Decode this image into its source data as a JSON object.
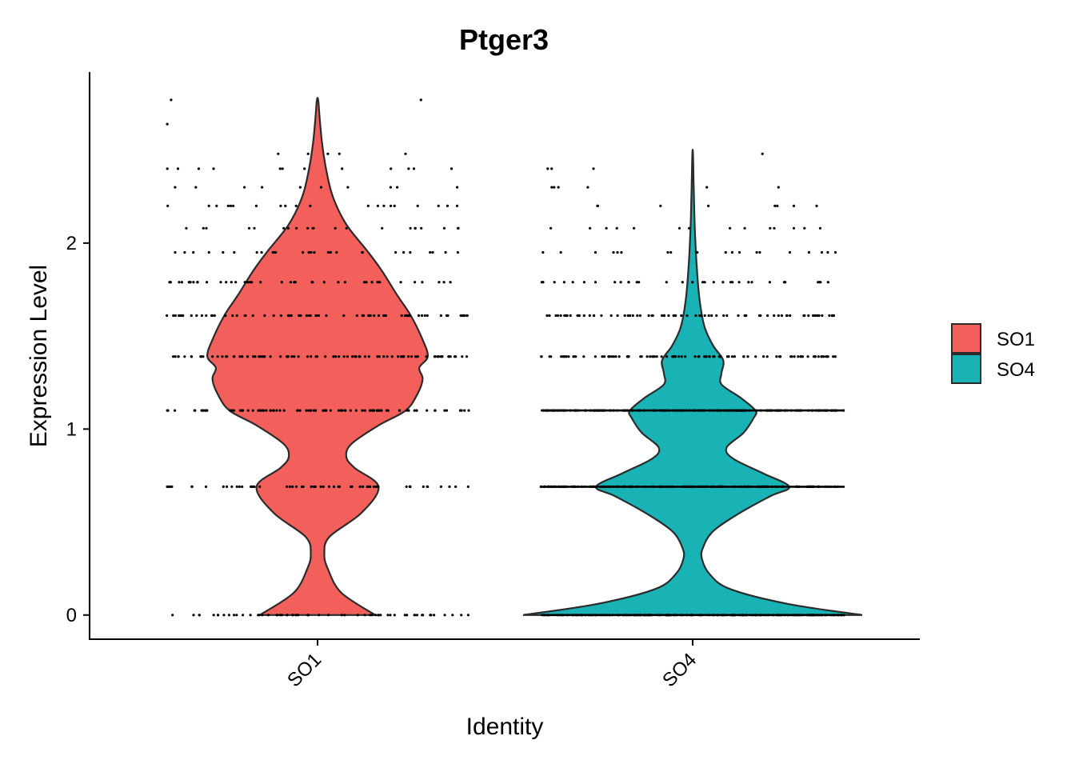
{
  "chart_data": {
    "type": "violin",
    "title": "Ptger3",
    "xlabel": "Identity",
    "ylabel": "Expression Level",
    "ylim": [
      -0.13,
      2.92
    ],
    "yticks": [
      0,
      1,
      2
    ],
    "categories": [
      "SO1",
      "SO4"
    ],
    "colors": {
      "SO1": "#F3605C",
      "SO4": "#19B2B5"
    },
    "legend": {
      "position": "right",
      "entries": [
        "SO1",
        "SO4"
      ]
    },
    "grid": false,
    "expression_levels": [
      0,
      0.69,
      1.1,
      1.39,
      1.61,
      1.79,
      1.95,
      2.08,
      2.2,
      2.3,
      2.4,
      2.48,
      2.64,
      2.77
    ],
    "series": [
      {
        "name": "SO1",
        "max": 2.77,
        "point_counts": [
          60,
          55,
          90,
          85,
          70,
          40,
          28,
          22,
          20,
          10,
          12,
          5,
          1,
          2
        ],
        "density_profile": [
          [
            0.0,
            0.34
          ],
          [
            0.12,
            0.14
          ],
          [
            0.25,
            0.06
          ],
          [
            0.33,
            0.04
          ],
          [
            0.42,
            0.07
          ],
          [
            0.55,
            0.26
          ],
          [
            0.69,
            0.36
          ],
          [
            0.79,
            0.22
          ],
          [
            0.85,
            0.17
          ],
          [
            0.92,
            0.2
          ],
          [
            1.02,
            0.36
          ],
          [
            1.1,
            0.52
          ],
          [
            1.19,
            0.59
          ],
          [
            1.27,
            0.62
          ],
          [
            1.33,
            0.6
          ],
          [
            1.39,
            0.65
          ],
          [
            1.48,
            0.62
          ],
          [
            1.61,
            0.55
          ],
          [
            1.72,
            0.47
          ],
          [
            1.85,
            0.38
          ],
          [
            1.95,
            0.3
          ],
          [
            2.1,
            0.17
          ],
          [
            2.25,
            0.09
          ],
          [
            2.4,
            0.05
          ],
          [
            2.55,
            0.025
          ],
          [
            2.68,
            0.012
          ],
          [
            2.77,
            0.004
          ]
        ]
      },
      {
        "name": "SO4",
        "max": 2.48,
        "point_counts": [
          160,
          170,
          160,
          95,
          75,
          32,
          20,
          14,
          8,
          6,
          3,
          1,
          0,
          0
        ],
        "density_profile": [
          [
            0.0,
            1.0
          ],
          [
            0.06,
            0.56
          ],
          [
            0.14,
            0.22
          ],
          [
            0.22,
            0.1
          ],
          [
            0.3,
            0.055
          ],
          [
            0.36,
            0.06
          ],
          [
            0.45,
            0.12
          ],
          [
            0.55,
            0.28
          ],
          [
            0.64,
            0.46
          ],
          [
            0.69,
            0.57
          ],
          [
            0.76,
            0.42
          ],
          [
            0.84,
            0.24
          ],
          [
            0.9,
            0.2
          ],
          [
            0.98,
            0.3
          ],
          [
            1.06,
            0.36
          ],
          [
            1.1,
            0.37
          ],
          [
            1.17,
            0.28
          ],
          [
            1.24,
            0.17
          ],
          [
            1.3,
            0.17
          ],
          [
            1.37,
            0.18
          ],
          [
            1.45,
            0.12
          ],
          [
            1.55,
            0.07
          ],
          [
            1.7,
            0.04
          ],
          [
            1.9,
            0.022
          ],
          [
            2.1,
            0.012
          ],
          [
            2.3,
            0.006
          ],
          [
            2.48,
            0.002
          ]
        ]
      }
    ]
  }
}
